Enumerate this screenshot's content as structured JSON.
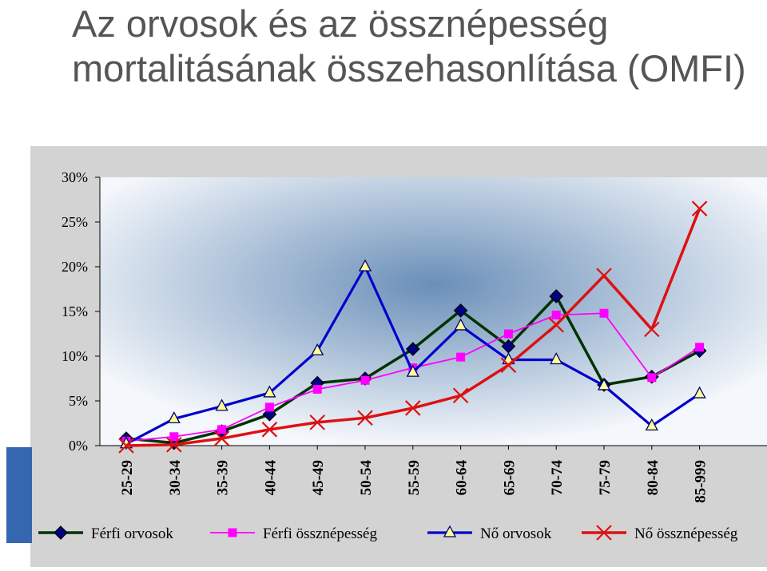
{
  "slide": {
    "title": "Az orvosok és az össznépesség mortalitásának összehasonlítása (OMFI)"
  },
  "colors": {
    "frame_bg": "#d3d3d3",
    "plot_bg_center": "#6a8fb8",
    "plot_bg_edge": "#f4f7fb",
    "accent_blue": "#3567b0"
  },
  "chart_data": {
    "type": "line",
    "title": "",
    "xlabel": "",
    "ylabel": "",
    "ylim": [
      0,
      30
    ],
    "yticks": [
      0,
      5,
      10,
      15,
      20,
      25,
      30
    ],
    "ytick_labels": [
      "0%",
      "5%",
      "10%",
      "15%",
      "20%",
      "25%",
      "30%"
    ],
    "grid": false,
    "legend_position": "bottom",
    "categories": [
      "25-29",
      "30-34",
      "35-39",
      "40-44",
      "45-49",
      "50-54",
      "55-59",
      "60-64",
      "65-69",
      "70-74",
      "75-79",
      "80-84",
      "85-999"
    ],
    "series": [
      {
        "name": "Férfi orvosok",
        "color": "#003300",
        "marker": "diamond",
        "marker_color": "#000080",
        "values": [
          0.8,
          0.3,
          1.6,
          3.5,
          7.0,
          7.5,
          10.8,
          15.1,
          11.1,
          16.7,
          6.8,
          7.7,
          10.6
        ]
      },
      {
        "name": "Férfi össznépesség",
        "color": "#ff00ff",
        "marker": "square",
        "marker_color": "#ff00ff",
        "values": [
          0.5,
          1.0,
          1.8,
          4.3,
          6.3,
          7.3,
          8.7,
          9.9,
          12.5,
          14.6,
          14.8,
          7.6,
          11.0
        ]
      },
      {
        "name": "Nő orvosok",
        "color": "#0000cc",
        "marker": "triangle",
        "marker_color": "#ffff99",
        "values": [
          0.2,
          3.0,
          4.4,
          5.9,
          10.6,
          20.0,
          8.2,
          13.4,
          9.6,
          9.6,
          6.7,
          2.2,
          5.8
        ]
      },
      {
        "name": "Nő össznépesség",
        "color": "#dd1111",
        "marker": "x",
        "marker_color": "#dd1111",
        "values": [
          0.0,
          0.1,
          0.8,
          1.8,
          2.6,
          3.1,
          4.2,
          5.6,
          9.0,
          13.5,
          19.0,
          13.0,
          26.5
        ]
      }
    ]
  }
}
